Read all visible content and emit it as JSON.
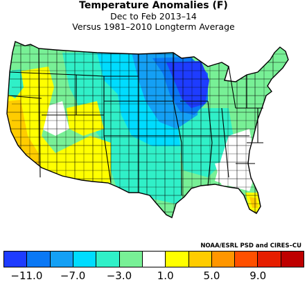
{
  "title": {
    "line1": "Temperature Anomalies (F)",
    "line2": "Dec to Feb 2013–14",
    "line3": "Versus 1981–2010 Longterm Average"
  },
  "credit": "NOAA/ESRL PSD and CIRES–CU",
  "colorbar": {
    "colors": [
      "#1e3cff",
      "#0a78f5",
      "#14a0f5",
      "#00dcff",
      "#30f0c8",
      "#78f096",
      "#ffffff",
      "#ffff00",
      "#ffcc00",
      "#ff9600",
      "#ff5000",
      "#e61e00",
      "#be0000"
    ],
    "tick_labels": [
      "−11.0",
      "−7.0",
      "−3.0",
      "1.0",
      "5.0",
      "9.0"
    ]
  },
  "map_legend_colors": {
    "much_colder": "#1e3cff",
    "colder": "#0a78f5",
    "cool": "#14a0f5",
    "cyan": "#00dcff",
    "teal": "#30f0c8",
    "light_green": "#78f096",
    "neutral": "#ffffff",
    "warm": "#ffff00",
    "warmer": "#ffcc00",
    "hot": "#ff9600"
  }
}
